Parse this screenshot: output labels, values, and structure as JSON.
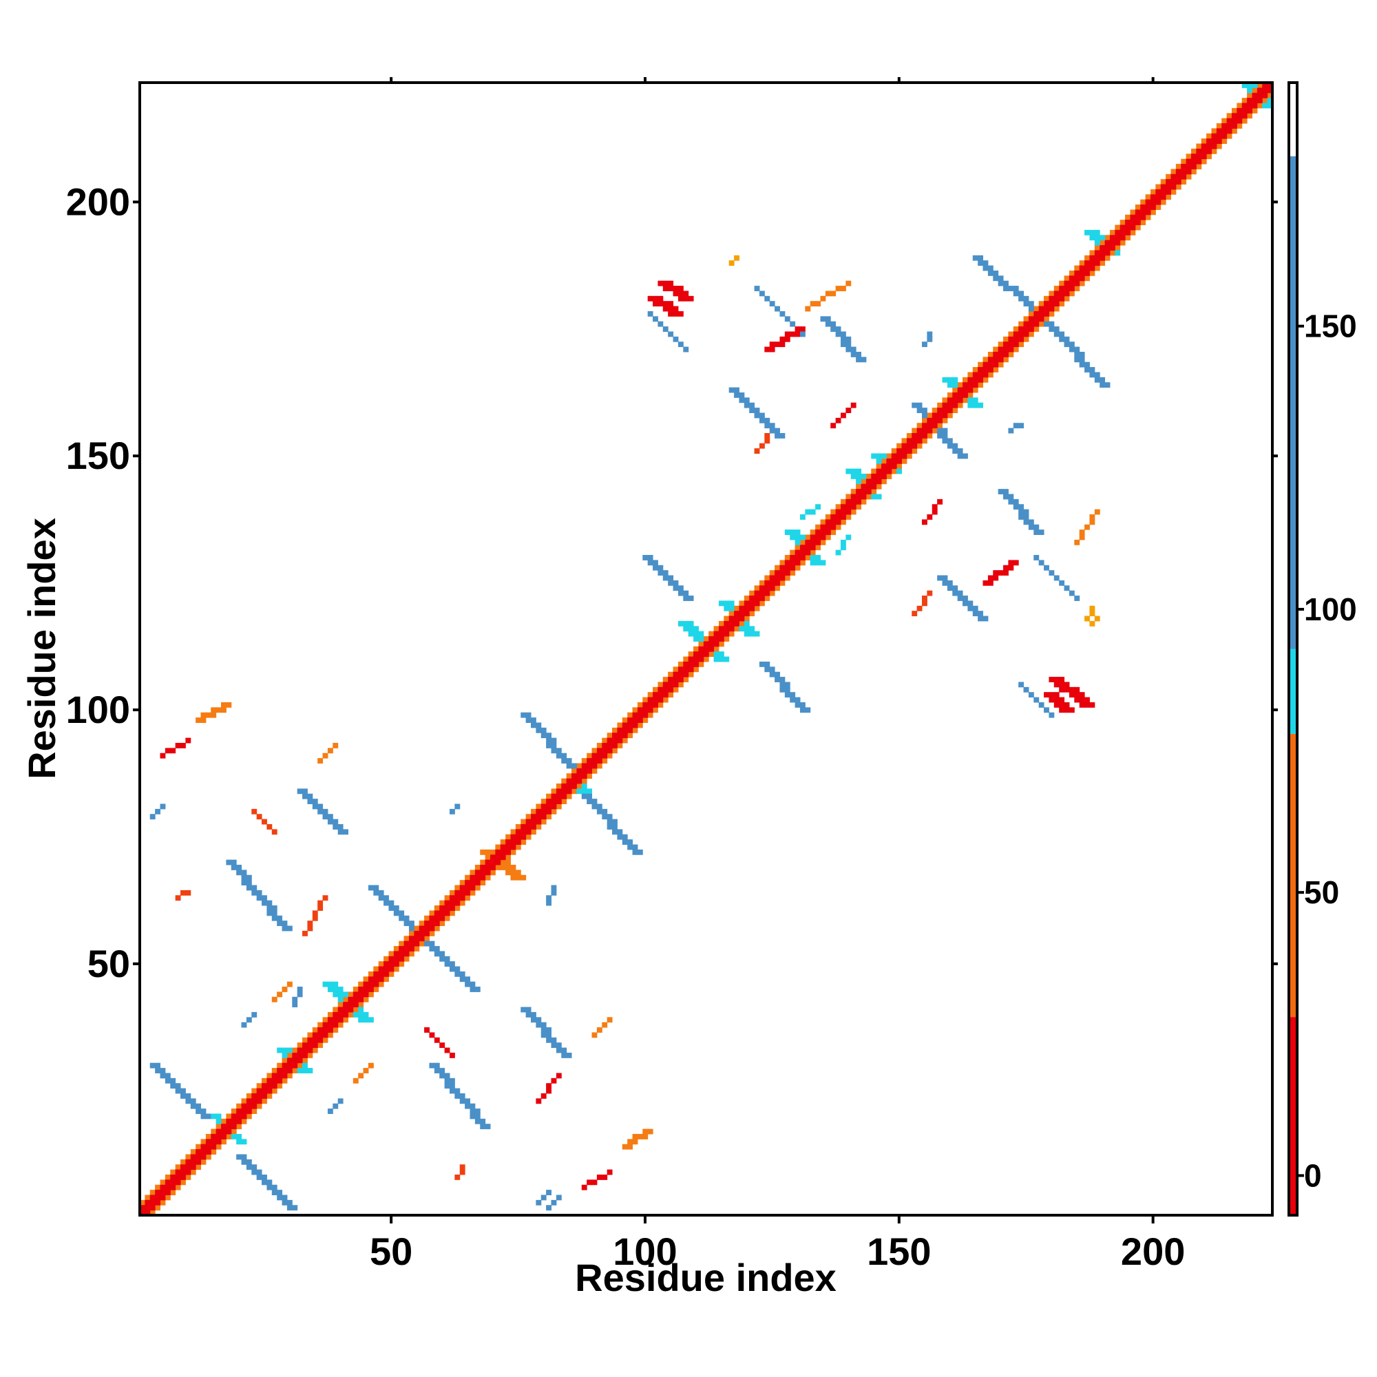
{
  "chart_data": {
    "type": "heatmap",
    "title": "",
    "xlabel": "Residue index",
    "ylabel": "Residue index",
    "xlim": [
      1,
      223
    ],
    "ylim": [
      1,
      223
    ],
    "x_ticks": [
      50,
      100,
      150,
      200
    ],
    "y_ticks": [
      50,
      100,
      150,
      200
    ],
    "colorbar": {
      "ticks": [
        0,
        50,
        100,
        150
      ],
      "range": [
        -7,
        193
      ],
      "bands": [
        {
          "from": -7,
          "to": 28,
          "color": "#e8000b"
        },
        {
          "from": 28,
          "to": 78,
          "color": "#f26a0f"
        },
        {
          "from": 78,
          "to": 93,
          "color": "#1fd6e8"
        },
        {
          "from": 93,
          "to": 180,
          "color": "#4a90c8"
        },
        {
          "from": 180,
          "to": 193,
          "color": "#ffffff"
        }
      ]
    },
    "colors": {
      "red": "#e8000b",
      "orange_red": "#f04010",
      "orange": "#f57c12",
      "amber": "#f5a000",
      "cyan": "#1fd6e8",
      "steel_blue": "#4a90c8"
    },
    "segments": [
      {
        "x0": 1,
        "y0": 1,
        "x1": 223,
        "y1": 223,
        "w": 1,
        "color": "red",
        "note": "diagonal i,i+1 band"
      },
      {
        "x0": 3,
        "y0": 1,
        "x1": 223,
        "y1": 221,
        "w": 1,
        "color": "orange"
      },
      {
        "x0": 1,
        "y0": 3,
        "x1": 221,
        "y1": 223,
        "w": 1,
        "color": "orange"
      },
      {
        "x0": 2,
        "y0": 1,
        "x1": 223,
        "y1": 222,
        "w": 1,
        "color": "red"
      },
      {
        "x0": 1,
        "y0": 2,
        "x1": 222,
        "y1": 223,
        "w": 1,
        "color": "red"
      },
      {
        "x0": 3,
        "y0": 30,
        "x1": 13,
        "y1": 20,
        "w": 2,
        "color": "steel_blue"
      },
      {
        "x0": 15,
        "y0": 20,
        "x1": 20,
        "y1": 15,
        "w": 2,
        "color": "cyan"
      },
      {
        "x0": 20,
        "y0": 12,
        "x1": 30,
        "y1": 2,
        "w": 2,
        "color": "steel_blue"
      },
      {
        "x0": 18,
        "y0": 70,
        "x1": 29,
        "y1": 57,
        "w": 2,
        "color": "steel_blue"
      },
      {
        "x0": 32,
        "y0": 84,
        "x1": 40,
        "y1": 76,
        "w": 2,
        "color": "steel_blue"
      },
      {
        "x0": 37,
        "y0": 46,
        "x1": 44,
        "y1": 39,
        "w": 3,
        "color": "cyan"
      },
      {
        "x0": 46,
        "y0": 65,
        "x1": 54,
        "y1": 57,
        "w": 2,
        "color": "steel_blue"
      },
      {
        "x0": 56,
        "y0": 55,
        "x1": 66,
        "y1": 45,
        "w": 2,
        "color": "steel_blue"
      },
      {
        "x0": 58,
        "y0": 30,
        "x1": 68,
        "y1": 18,
        "w": 2,
        "color": "steel_blue"
      },
      {
        "x0": 76,
        "y0": 41,
        "x1": 84,
        "y1": 32,
        "w": 2,
        "color": "steel_blue"
      },
      {
        "x0": 76,
        "y0": 99,
        "x1": 86,
        "y1": 88,
        "w": 2,
        "color": "steel_blue"
      },
      {
        "x0": 85,
        "y0": 86,
        "x1": 87,
        "y1": 84,
        "w": 3,
        "color": "cyan"
      },
      {
        "x0": 88,
        "y0": 83,
        "x1": 98,
        "y1": 72,
        "w": 2,
        "color": "steel_blue"
      },
      {
        "x0": 100,
        "y0": 130,
        "x1": 108,
        "y1": 122,
        "w": 2,
        "color": "steel_blue"
      },
      {
        "x0": 123,
        "y0": 109,
        "x1": 131,
        "y1": 100,
        "w": 2,
        "color": "steel_blue"
      },
      {
        "x0": 117,
        "y0": 163,
        "x1": 126,
        "y1": 154,
        "w": 2,
        "color": "steel_blue"
      },
      {
        "x0": 135,
        "y0": 177,
        "x1": 142,
        "y1": 169,
        "w": 2,
        "color": "steel_blue"
      },
      {
        "x0": 153,
        "y0": 160,
        "x1": 162,
        "y1": 150,
        "w": 2,
        "color": "steel_blue"
      },
      {
        "x0": 158,
        "y0": 126,
        "x1": 166,
        "y1": 118,
        "w": 2,
        "color": "steel_blue"
      },
      {
        "x0": 170,
        "y0": 143,
        "x1": 177,
        "y1": 135,
        "w": 2,
        "color": "steel_blue"
      },
      {
        "x0": 165,
        "y0": 189,
        "x1": 178,
        "y1": 177,
        "w": 2,
        "color": "steel_blue"
      },
      {
        "x0": 179,
        "y0": 176,
        "x1": 190,
        "y1": 164,
        "w": 2,
        "color": "steel_blue"
      },
      {
        "x0": 174,
        "y0": 105,
        "x1": 180,
        "y1": 99,
        "w": 1,
        "color": "steel_blue"
      },
      {
        "x0": 101,
        "y0": 178,
        "x1": 108,
        "y1": 171,
        "w": 1,
        "color": "steel_blue"
      },
      {
        "x0": 107,
        "y0": 117,
        "x1": 114,
        "y1": 110,
        "w": 3,
        "color": "cyan"
      },
      {
        "x0": 115,
        "y0": 121,
        "x1": 120,
        "y1": 115,
        "w": 3,
        "color": "cyan"
      },
      {
        "x0": 128,
        "y0": 135,
        "x1": 133,
        "y1": 129,
        "w": 3,
        "color": "cyan"
      },
      {
        "x0": 140,
        "y0": 147,
        "x1": 144,
        "y1": 142,
        "w": 3,
        "color": "cyan"
      },
      {
        "x0": 145,
        "y0": 150,
        "x1": 148,
        "y1": 147,
        "w": 3,
        "color": "cyan"
      },
      {
        "x0": 159,
        "y0": 165,
        "x1": 164,
        "y1": 160,
        "w": 3,
        "color": "cyan"
      },
      {
        "x0": 187,
        "y0": 194,
        "x1": 191,
        "y1": 190,
        "w": 3,
        "color": "cyan"
      },
      {
        "x0": 218,
        "y0": 223,
        "x1": 222,
        "y1": 219,
        "w": 3,
        "color": "cyan"
      },
      {
        "x0": 68,
        "y0": 72,
        "x1": 74,
        "y1": 67,
        "w": 3,
        "color": "orange"
      },
      {
        "x0": 28,
        "y0": 33,
        "x1": 32,
        "y1": 29,
        "w": 3,
        "color": "cyan"
      },
      {
        "x0": 103,
        "y0": 184,
        "x1": 107,
        "y1": 181,
        "w": 3,
        "color": "red"
      },
      {
        "x0": 101,
        "y0": 181,
        "x1": 105,
        "y1": 178,
        "w": 3,
        "color": "red"
      },
      {
        "x0": 180,
        "y0": 106,
        "x1": 186,
        "y1": 101,
        "w": 3,
        "color": "red"
      },
      {
        "x0": 179,
        "y0": 103,
        "x1": 182,
        "y1": 100,
        "w": 3,
        "color": "red"
      },
      {
        "x0": 167,
        "y0": 125,
        "x1": 172,
        "y1": 129,
        "w": 2,
        "color": "red"
      },
      {
        "x0": 124,
        "y0": 171,
        "x1": 130,
        "y1": 175,
        "w": 2,
        "color": "red"
      },
      {
        "x0": 12,
        "y0": 98,
        "x1": 17,
        "y1": 101,
        "w": 2,
        "color": "orange"
      },
      {
        "x0": 96,
        "y0": 14,
        "x1": 100,
        "y1": 17,
        "w": 2,
        "color": "orange"
      },
      {
        "x0": 57,
        "y0": 37,
        "x1": 62,
        "y1": 32,
        "w": 1,
        "color": "red"
      },
      {
        "x0": 33,
        "y0": 56,
        "x1": 37,
        "y1": 63,
        "w": 1,
        "color": "orange_red"
      },
      {
        "x0": 23,
        "y0": 80,
        "x1": 27,
        "y1": 76,
        "w": 1,
        "color": "orange_red"
      },
      {
        "x0": 5,
        "y0": 91,
        "x1": 10,
        "y1": 94,
        "w": 1,
        "color": "red"
      },
      {
        "x0": 88,
        "y0": 6,
        "x1": 93,
        "y1": 9,
        "w": 1,
        "color": "red"
      },
      {
        "x0": 79,
        "y0": 23,
        "x1": 83,
        "y1": 28,
        "w": 1,
        "color": "red"
      },
      {
        "x0": 185,
        "y0": 133,
        "x1": 189,
        "y1": 139,
        "w": 1,
        "color": "orange"
      },
      {
        "x0": 132,
        "y0": 179,
        "x1": 140,
        "y1": 184,
        "w": 1,
        "color": "orange"
      },
      {
        "x0": 155,
        "y0": 137,
        "x1": 158,
        "y1": 141,
        "w": 1,
        "color": "red"
      },
      {
        "x0": 137,
        "y0": 156,
        "x1": 141,
        "y1": 160,
        "w": 1,
        "color": "red"
      },
      {
        "x0": 153,
        "y0": 119,
        "x1": 156,
        "y1": 123,
        "w": 1,
        "color": "orange_red"
      },
      {
        "x0": 122,
        "y0": 151,
        "x1": 125,
        "y1": 155,
        "w": 1,
        "color": "orange_red"
      },
      {
        "x0": 117,
        "y0": 188,
        "x1": 118,
        "y1": 189,
        "w": 1,
        "color": "amber"
      },
      {
        "x0": 188,
        "y0": 117,
        "x1": 189,
        "y1": 118,
        "w": 1,
        "color": "amber"
      },
      {
        "x0": 122,
        "y0": 183,
        "x1": 131,
        "y1": 174,
        "w": 1,
        "color": "steel_blue"
      },
      {
        "x0": 177,
        "y0": 130,
        "x1": 185,
        "y1": 122,
        "w": 1,
        "color": "steel_blue"
      },
      {
        "x0": 36,
        "y0": 90,
        "x1": 39,
        "y1": 93,
        "w": 1,
        "color": "orange"
      },
      {
        "x0": 90,
        "y0": 36,
        "x1": 93,
        "y1": 39,
        "w": 1,
        "color": "orange"
      },
      {
        "x0": 43,
        "y0": 27,
        "x1": 46,
        "y1": 30,
        "w": 1,
        "color": "orange"
      },
      {
        "x0": 27,
        "y0": 43,
        "x1": 30,
        "y1": 46,
        "w": 1,
        "color": "orange"
      },
      {
        "x0": 8,
        "y0": 63,
        "x1": 10,
        "y1": 64,
        "w": 1,
        "color": "orange_red"
      },
      {
        "x0": 63,
        "y0": 8,
        "x1": 64,
        "y1": 10,
        "w": 1,
        "color": "orange_red"
      },
      {
        "x0": 3,
        "y0": 79,
        "x1": 5,
        "y1": 81,
        "w": 1,
        "color": "steel_blue"
      },
      {
        "x0": 79,
        "y0": 3,
        "x1": 81,
        "y1": 5,
        "w": 1,
        "color": "steel_blue"
      },
      {
        "x0": 31,
        "y0": 42,
        "x1": 32,
        "y1": 45,
        "w": 1,
        "color": "steel_blue"
      },
      {
        "x0": 81,
        "y0": 62,
        "x1": 82,
        "y1": 65,
        "w": 1,
        "color": "steel_blue"
      },
      {
        "x0": 62,
        "y0": 80,
        "x1": 63,
        "y1": 81,
        "w": 1,
        "color": "steel_blue"
      },
      {
        "x0": 155,
        "y0": 172,
        "x1": 156,
        "y1": 174,
        "w": 1,
        "color": "steel_blue"
      },
      {
        "x0": 172,
        "y0": 155,
        "x1": 174,
        "y1": 156,
        "w": 1,
        "color": "steel_blue"
      },
      {
        "x0": 131,
        "y0": 138,
        "x1": 134,
        "y1": 140,
        "w": 1,
        "color": "cyan"
      },
      {
        "x0": 138,
        "y0": 131,
        "x1": 140,
        "y1": 134,
        "w": 1,
        "color": "cyan"
      },
      {
        "x0": 21,
        "y0": 38,
        "x1": 23,
        "y1": 40,
        "w": 1,
        "color": "steel_blue"
      },
      {
        "x0": 38,
        "y0": 21,
        "x1": 40,
        "y1": 23,
        "w": 1,
        "color": "steel_blue"
      },
      {
        "x0": 81,
        "y0": 2,
        "x1": 83,
        "y1": 4,
        "w": 1,
        "color": "steel_blue"
      },
      {
        "x0": 187,
        "y0": 118,
        "x1": 188,
        "y1": 120,
        "w": 1,
        "color": "amber"
      },
      {
        "x0": 162,
        "y0": 162,
        "x1": 166,
        "y1": 168,
        "w": 2,
        "color": "amber"
      }
    ]
  }
}
